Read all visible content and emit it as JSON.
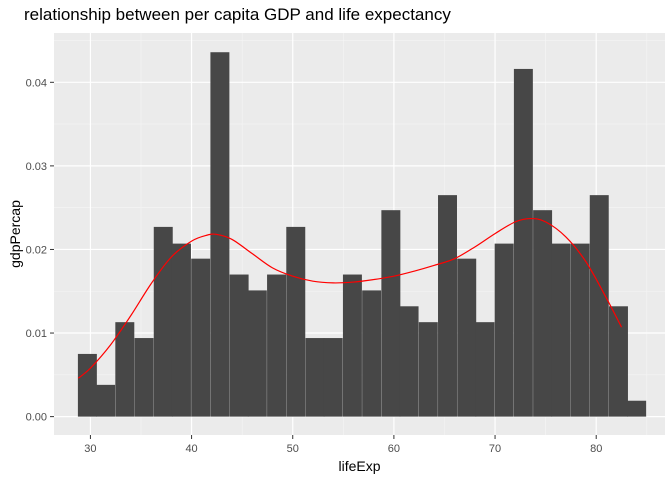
{
  "chart_data": {
    "type": "bar",
    "title": "relationship between per capita GDP and life expectancy",
    "xlabel": "lifeExp",
    "ylabel": "gdpPercap",
    "xlim": [
      26.4,
      86.8
    ],
    "ylim": [
      -0.0022,
      0.0459
    ],
    "xticks": [
      30,
      40,
      50,
      60,
      70,
      80
    ],
    "xtick_labels": [
      "30",
      "40",
      "50",
      "60",
      "70",
      "80"
    ],
    "yticks": [
      0,
      0.01,
      0.02,
      0.03,
      0.04
    ],
    "ytick_labels": [
      "0.00",
      "0.01",
      "0.02",
      "0.03",
      "0.04"
    ],
    "grid": true,
    "bin_width": 1.875,
    "bins": [
      {
        "x": 29.7,
        "density": 0.0075
      },
      {
        "x": 31.5,
        "density": 0.0038
      },
      {
        "x": 33.4,
        "density": 0.0113
      },
      {
        "x": 35.3,
        "density": 0.0094
      },
      {
        "x": 37.2,
        "density": 0.0227
      },
      {
        "x": 39.0,
        "density": 0.0207
      },
      {
        "x": 40.9,
        "density": 0.0189
      },
      {
        "x": 42.8,
        "density": 0.0436
      },
      {
        "x": 44.7,
        "density": 0.017
      },
      {
        "x": 46.5,
        "density": 0.0151
      },
      {
        "x": 48.4,
        "density": 0.017
      },
      {
        "x": 50.3,
        "density": 0.0227
      },
      {
        "x": 52.2,
        "density": 0.0094
      },
      {
        "x": 54.0,
        "density": 0.0094
      },
      {
        "x": 55.9,
        "density": 0.017
      },
      {
        "x": 57.8,
        "density": 0.0151
      },
      {
        "x": 59.7,
        "density": 0.0247
      },
      {
        "x": 61.5,
        "density": 0.0132
      },
      {
        "x": 63.4,
        "density": 0.0113
      },
      {
        "x": 65.3,
        "density": 0.0265
      },
      {
        "x": 67.2,
        "density": 0.0189
      },
      {
        "x": 69.0,
        "density": 0.0113
      },
      {
        "x": 70.9,
        "density": 0.0207
      },
      {
        "x": 72.8,
        "density": 0.0416
      },
      {
        "x": 74.7,
        "density": 0.0247
      },
      {
        "x": 76.5,
        "density": 0.0207
      },
      {
        "x": 78.4,
        "density": 0.0207
      },
      {
        "x": 80.3,
        "density": 0.0265
      },
      {
        "x": 82.2,
        "density": 0.0132
      },
      {
        "x": 84.0,
        "density": 0.0019
      }
    ],
    "density_line": {
      "color": "#ff0000",
      "points": [
        [
          28.8,
          0.0046
        ],
        [
          30.0,
          0.0058
        ],
        [
          32.0,
          0.0086
        ],
        [
          34.0,
          0.0121
        ],
        [
          36.0,
          0.0159
        ],
        [
          38.0,
          0.0191
        ],
        [
          40.0,
          0.021
        ],
        [
          41.5,
          0.0217
        ],
        [
          42.5,
          0.0218
        ],
        [
          44.0,
          0.0212
        ],
        [
          46.0,
          0.0195
        ],
        [
          48.0,
          0.0178
        ],
        [
          50.0,
          0.0168
        ],
        [
          52.0,
          0.0162
        ],
        [
          54.0,
          0.016
        ],
        [
          56.0,
          0.0161
        ],
        [
          58.0,
          0.0164
        ],
        [
          60.0,
          0.0168
        ],
        [
          62.0,
          0.0174
        ],
        [
          64.0,
          0.0181
        ],
        [
          66.0,
          0.0189
        ],
        [
          68.0,
          0.0203
        ],
        [
          70.0,
          0.0219
        ],
        [
          72.0,
          0.0233
        ],
        [
          73.5,
          0.0237
        ],
        [
          75.0,
          0.0233
        ],
        [
          77.0,
          0.0215
        ],
        [
          79.0,
          0.0185
        ],
        [
          81.0,
          0.0142
        ],
        [
          82.5,
          0.0107
        ]
      ]
    },
    "colors": {
      "panel": "#ebebeb",
      "grid_major": "#ffffff",
      "bar_fill": "#474747",
      "text": "#000000",
      "tick_text": "#4d4d4d",
      "tick_mark": "#333333"
    }
  }
}
